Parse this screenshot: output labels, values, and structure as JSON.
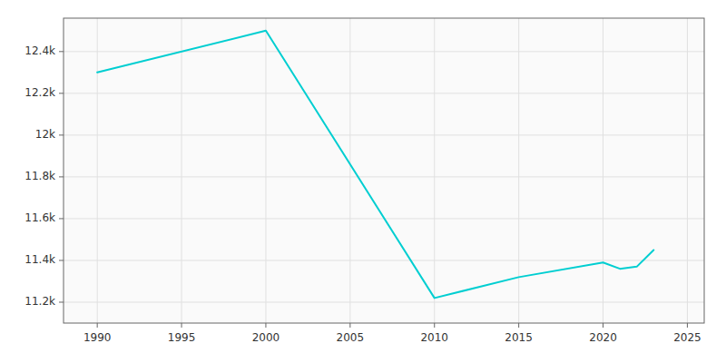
{
  "chart_data": {
    "type": "line",
    "x": [
      1990,
      2000,
      2010,
      2015,
      2020,
      2021,
      2022,
      2023
    ],
    "values": [
      12300,
      12500,
      11220,
      11320,
      11390,
      11360,
      11370,
      11450
    ],
    "color": "#00CED1",
    "xlim": [
      1988,
      2026
    ],
    "ylim": [
      11100,
      12560
    ],
    "xticks": [
      1990,
      1995,
      2000,
      2005,
      2010,
      2015,
      2020,
      2025
    ],
    "yticks": [
      {
        "value": 11200,
        "label": "11.2k"
      },
      {
        "value": 11400,
        "label": "11.4k"
      },
      {
        "value": 11600,
        "label": "11.6k"
      },
      {
        "value": 11800,
        "label": "11.8k"
      },
      {
        "value": 12000,
        "label": "12k"
      },
      {
        "value": 12200,
        "label": "12.2k"
      },
      {
        "value": 12400,
        "label": "12.4k"
      }
    ],
    "grid": true
  }
}
